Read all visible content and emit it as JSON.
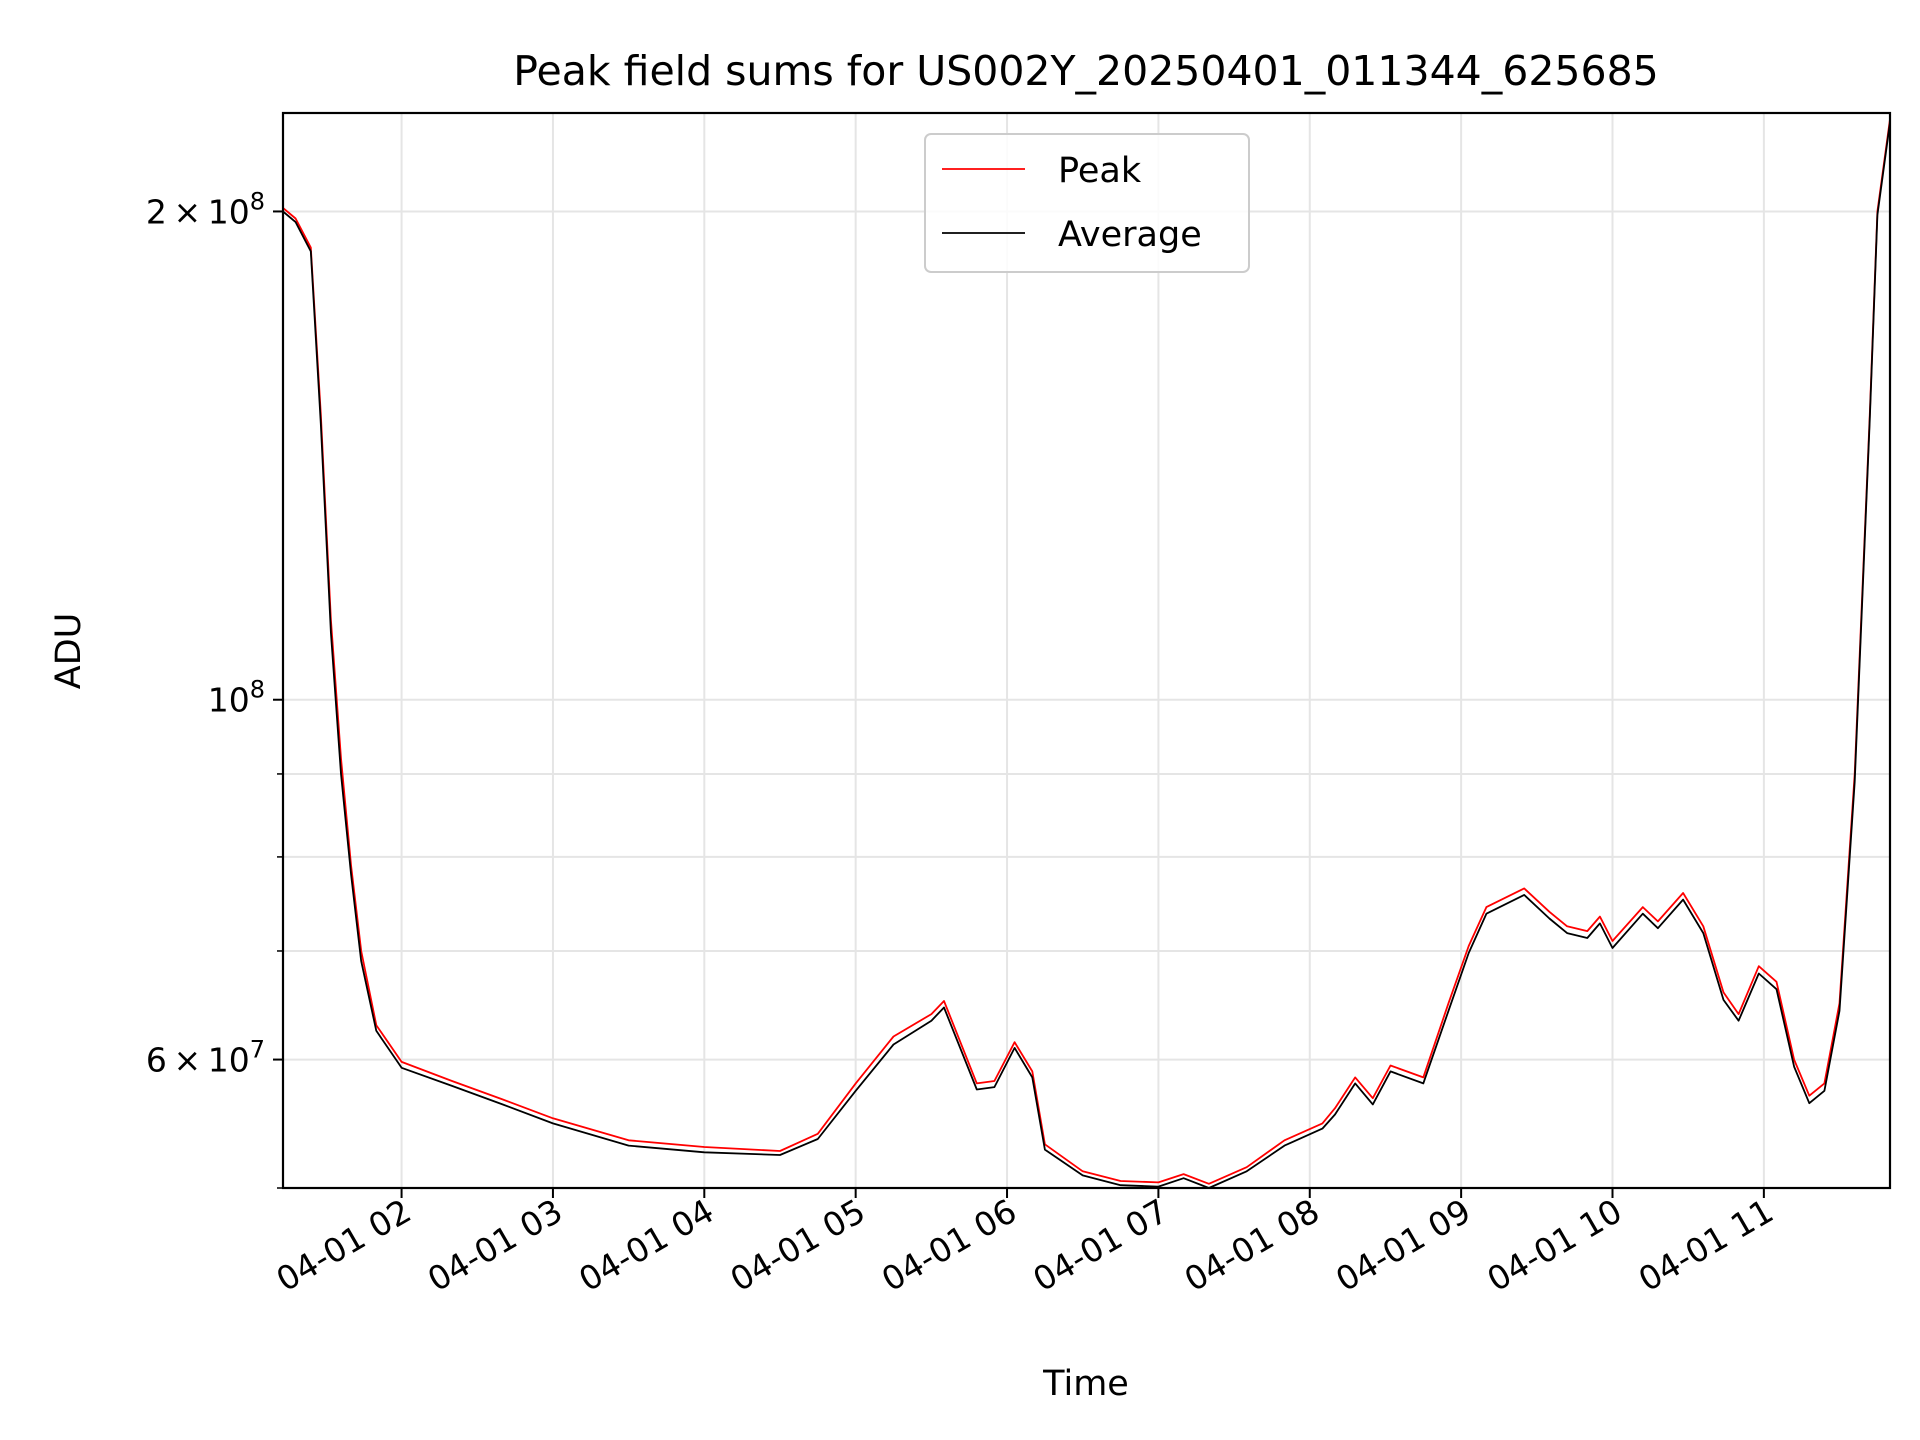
{
  "chart_data": {
    "type": "line",
    "title": "Peak field sums for US002Y_20250401_011344_625685",
    "xlabel": "Time",
    "ylabel": "ADU",
    "y_scale": "log",
    "ylim": [
      50000000,
      230000000
    ],
    "xlim": [
      "2025-04-01 01:13",
      "2025-04-01 11:50"
    ],
    "grid": true,
    "legend_position": "top-center",
    "x_ticks": [
      {
        "value": "2025-04-01 02:00",
        "label": "04-01 02"
      },
      {
        "value": "2025-04-01 03:00",
        "label": "04-01 03"
      },
      {
        "value": "2025-04-01 04:00",
        "label": "04-01 04"
      },
      {
        "value": "2025-04-01 05:00",
        "label": "04-01 05"
      },
      {
        "value": "2025-04-01 06:00",
        "label": "04-01 06"
      },
      {
        "value": "2025-04-01 07:00",
        "label": "04-01 07"
      },
      {
        "value": "2025-04-01 08:00",
        "label": "04-01 08"
      },
      {
        "value": "2025-04-01 09:00",
        "label": "04-01 09"
      },
      {
        "value": "2025-04-01 10:00",
        "label": "04-01 10"
      },
      {
        "value": "2025-04-01 11:00",
        "label": "04-01 11"
      }
    ],
    "y_ticks_major": [
      {
        "value": 60000000,
        "mant": "6",
        "exp": "7"
      },
      {
        "value": 100000000,
        "mant": "",
        "exp": "8"
      },
      {
        "value": 200000000,
        "mant": "2",
        "exp": "8"
      }
    ],
    "y_ticks_minor": [
      50000000,
      70000000,
      80000000,
      90000000
    ],
    "series": [
      {
        "name": "Peak",
        "color": "#ff0000",
        "x": [
          "2025-04-01 01:13",
          "2025-04-01 01:18",
          "2025-04-01 01:24",
          "2025-04-01 01:28",
          "2025-04-01 01:32",
          "2025-04-01 01:36",
          "2025-04-01 01:40",
          "2025-04-01 01:44",
          "2025-04-01 01:50",
          "2025-04-01 02:00",
          "2025-04-01 02:20",
          "2025-04-01 02:40",
          "2025-04-01 03:00",
          "2025-04-01 03:30",
          "2025-04-01 04:00",
          "2025-04-01 04:30",
          "2025-04-01 04:45",
          "2025-04-01 05:00",
          "2025-04-01 05:15",
          "2025-04-01 05:30",
          "2025-04-01 05:35",
          "2025-04-01 05:48",
          "2025-04-01 05:55",
          "2025-04-01 06:03",
          "2025-04-01 06:10",
          "2025-04-01 06:15",
          "2025-04-01 06:30",
          "2025-04-01 06:45",
          "2025-04-01 07:00",
          "2025-04-01 07:10",
          "2025-04-01 07:20",
          "2025-04-01 07:35",
          "2025-04-01 07:50",
          "2025-04-01 08:05",
          "2025-04-01 08:10",
          "2025-04-01 08:18",
          "2025-04-01 08:25",
          "2025-04-01 08:32",
          "2025-04-01 08:45",
          "2025-04-01 08:55",
          "2025-04-01 09:03",
          "2025-04-01 09:10",
          "2025-04-01 09:25",
          "2025-04-01 09:35",
          "2025-04-01 09:42",
          "2025-04-01 09:50",
          "2025-04-01 09:55",
          "2025-04-01 10:00",
          "2025-04-01 10:12",
          "2025-04-01 10:18",
          "2025-04-01 10:28",
          "2025-04-01 10:36",
          "2025-04-01 10:44",
          "2025-04-01 10:50",
          "2025-04-01 10:58",
          "2025-04-01 11:05",
          "2025-04-01 11:12",
          "2025-04-01 11:18",
          "2025-04-01 11:24",
          "2025-04-01 11:30",
          "2025-04-01 11:36",
          "2025-04-01 11:42",
          "2025-04-01 11:45",
          "2025-04-01 11:50"
        ],
        "y": [
          201000000,
          198000000,
          190000000,
          150000000,
          112000000,
          92000000,
          79000000,
          70000000,
          63000000,
          59800000,
          58200000,
          56700000,
          55200000,
          53500000,
          53000000,
          52700000,
          54000000,
          58000000,
          62000000,
          64000000,
          65200000,
          58000000,
          58200000,
          61500000,
          59000000,
          53200000,
          51200000,
          50500000,
          50400000,
          51000000,
          50300000,
          51500000,
          53500000,
          54800000,
          56000000,
          58500000,
          56800000,
          59500000,
          58500000,
          65000000,
          70500000,
          74500000,
          76500000,
          74000000,
          72500000,
          72000000,
          73500000,
          71000000,
          74500000,
          73000000,
          76000000,
          72500000,
          66000000,
          64000000,
          68500000,
          67000000,
          60000000,
          57000000,
          58000000,
          65000000,
          90000000,
          150000000,
          200000000,
          228000000
        ]
      },
      {
        "name": "Average",
        "color": "#000000",
        "x": [
          "2025-04-01 01:13",
          "2025-04-01 01:18",
          "2025-04-01 01:24",
          "2025-04-01 01:28",
          "2025-04-01 01:32",
          "2025-04-01 01:36",
          "2025-04-01 01:40",
          "2025-04-01 01:44",
          "2025-04-01 01:50",
          "2025-04-01 02:00",
          "2025-04-01 02:20",
          "2025-04-01 02:40",
          "2025-04-01 03:00",
          "2025-04-01 03:30",
          "2025-04-01 04:00",
          "2025-04-01 04:30",
          "2025-04-01 04:45",
          "2025-04-01 05:00",
          "2025-04-01 05:15",
          "2025-04-01 05:30",
          "2025-04-01 05:35",
          "2025-04-01 05:48",
          "2025-04-01 05:55",
          "2025-04-01 06:03",
          "2025-04-01 06:10",
          "2025-04-01 06:15",
          "2025-04-01 06:30",
          "2025-04-01 06:45",
          "2025-04-01 07:00",
          "2025-04-01 07:10",
          "2025-04-01 07:20",
          "2025-04-01 07:35",
          "2025-04-01 07:50",
          "2025-04-01 08:05",
          "2025-04-01 08:10",
          "2025-04-01 08:18",
          "2025-04-01 08:25",
          "2025-04-01 08:32",
          "2025-04-01 08:45",
          "2025-04-01 08:55",
          "2025-04-01 09:03",
          "2025-04-01 09:10",
          "2025-04-01 09:25",
          "2025-04-01 09:35",
          "2025-04-01 09:42",
          "2025-04-01 09:50",
          "2025-04-01 09:55",
          "2025-04-01 10:00",
          "2025-04-01 10:12",
          "2025-04-01 10:18",
          "2025-04-01 10:28",
          "2025-04-01 10:36",
          "2025-04-01 10:44",
          "2025-04-01 10:50",
          "2025-04-01 10:58",
          "2025-04-01 11:05",
          "2025-04-01 11:12",
          "2025-04-01 11:18",
          "2025-04-01 11:24",
          "2025-04-01 11:30",
          "2025-04-01 11:36",
          "2025-04-01 11:42",
          "2025-04-01 11:45",
          "2025-04-01 11:50"
        ],
        "y": [
          200000000,
          197000000,
          189000000,
          148000000,
          110000000,
          90000000,
          78000000,
          69000000,
          62500000,
          59300000,
          57800000,
          56300000,
          54800000,
          53100000,
          52600000,
          52400000,
          53600000,
          57400000,
          61300000,
          63400000,
          64600000,
          57500000,
          57700000,
          61000000,
          58500000,
          52800000,
          50900000,
          50200000,
          50100000,
          50700000,
          50000000,
          51200000,
          53100000,
          54400000,
          55500000,
          58000000,
          56300000,
          59000000,
          58000000,
          64300000,
          69800000,
          73800000,
          75800000,
          73300000,
          71800000,
          71300000,
          72800000,
          70300000,
          73800000,
          72300000,
          75300000,
          71800000,
          65300000,
          63400000,
          67800000,
          66300000,
          59400000,
          56400000,
          57400000,
          64300000,
          89000000,
          149000000,
          199000000,
          227000000
        ]
      }
    ]
  }
}
